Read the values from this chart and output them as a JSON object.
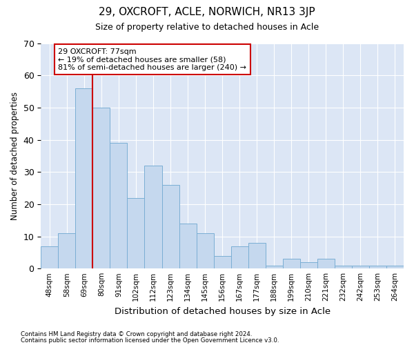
{
  "title": "29, OXCROFT, ACLE, NORWICH, NR13 3JP",
  "subtitle": "Size of property relative to detached houses in Acle",
  "xlabel": "Distribution of detached houses by size in Acle",
  "ylabel": "Number of detached properties",
  "categories": [
    "48sqm",
    "58sqm",
    "69sqm",
    "80sqm",
    "91sqm",
    "102sqm",
    "112sqm",
    "123sqm",
    "134sqm",
    "145sqm",
    "156sqm",
    "167sqm",
    "177sqm",
    "188sqm",
    "199sqm",
    "210sqm",
    "221sqm",
    "232sqm",
    "242sqm",
    "253sqm",
    "264sqm"
  ],
  "values": [
    7,
    11,
    56,
    50,
    39,
    22,
    32,
    26,
    14,
    11,
    4,
    7,
    8,
    1,
    3,
    2,
    3,
    1,
    1,
    1,
    1
  ],
  "bar_color": "#c5d8ee",
  "bar_edge_color": "#7aaed4",
  "vline_color": "#cc0000",
  "vline_x_index": 2.5,
  "annotation_text_line1": "29 OXCROFT: 77sqm",
  "annotation_text_line2": "← 19% of detached houses are smaller (58)",
  "annotation_text_line3": "81% of semi-detached houses are larger (240) →",
  "annotation_box_color": "white",
  "annotation_box_edge": "#cc0000",
  "ylim": [
    0,
    70
  ],
  "yticks": [
    0,
    10,
    20,
    30,
    40,
    50,
    60,
    70
  ],
  "bg_color": "#dce6f5",
  "grid_color": "white",
  "title_fontsize": 11,
  "subtitle_fontsize": 9,
  "footer1": "Contains HM Land Registry data © Crown copyright and database right 2024.",
  "footer2": "Contains public sector information licensed under the Open Government Licence v3.0."
}
